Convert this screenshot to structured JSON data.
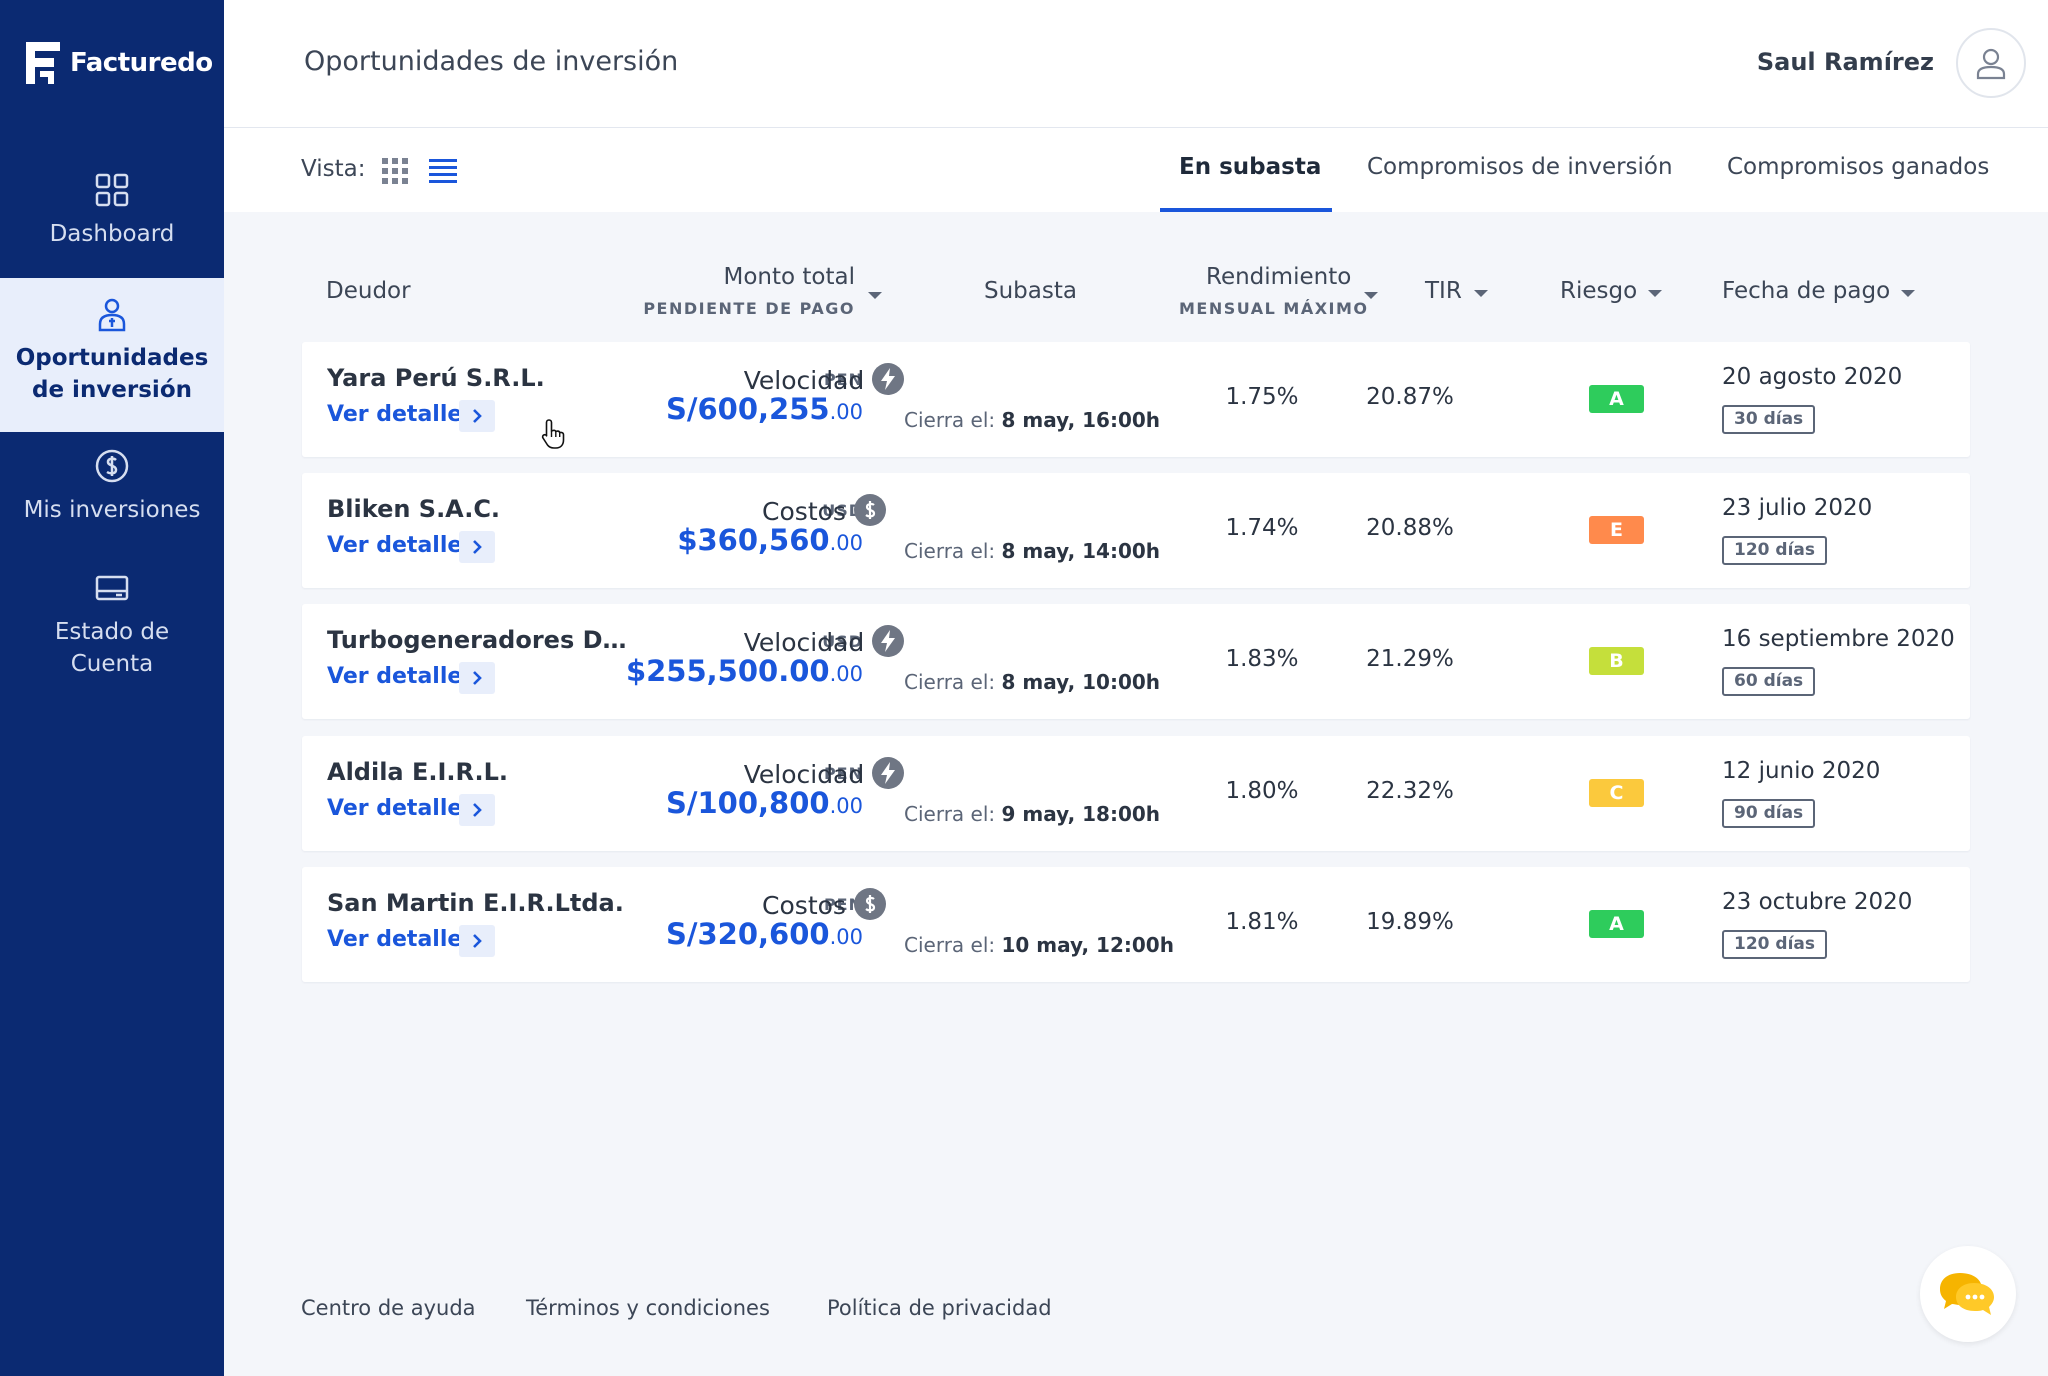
{
  "app": {
    "brand": "Facturedo",
    "brand_color": "#0b2a72",
    "accent": "#1a56db"
  },
  "sidebar": {
    "items": [
      {
        "label": "Dashboard",
        "icon": "grid-icon",
        "active": false
      },
      {
        "label_line1": "Oportunidades",
        "label_line2": "de inversión",
        "icon": "investor-icon",
        "active": true
      },
      {
        "label": "Mis inversiones",
        "icon": "dollar-circle-icon",
        "active": false
      },
      {
        "label_line1": "Estado de",
        "label_line2": "Cuenta",
        "icon": "wallet-icon",
        "active": false
      }
    ]
  },
  "header": {
    "title": "Oportunidades de inversión",
    "user_name": "Saul Ramírez"
  },
  "toolbar": {
    "vista_label": "Vista:",
    "tabs": [
      {
        "label": "En subasta",
        "active": true
      },
      {
        "label": "Compromisos de inversión",
        "active": false
      },
      {
        "label": "Compromisos ganados",
        "active": false
      }
    ]
  },
  "table": {
    "headers": {
      "deudor": "Deudor",
      "monto": "Monto total",
      "monto_sub": "PENDIENTE DE PAGO",
      "subasta": "Subasta",
      "rendimiento": "Rendimiento",
      "rendimiento_sub": "MENSUAL MÁXIMO",
      "tir": "TIR",
      "riesgo": "Riesgo",
      "fecha": "Fecha de pago"
    },
    "ver_detalle": "Ver detalle",
    "cierra_label": "Cierra el:",
    "rows": [
      {
        "deudor": "Yara Perú S.R.L.",
        "currency": "PEN",
        "amount": "S/600,255",
        "cents": ".00",
        "subasta": "Velocidad",
        "subasta_icon": "lightning-icon",
        "cierra": "8 may, 16:00h",
        "rendimiento": "1.75%",
        "tir": "20.87%",
        "riesgo": "A",
        "riesgo_color": "#2ecc5c",
        "fecha": "20 agosto 2020",
        "dias": "30 días"
      },
      {
        "deudor": "Bliken S.A.C.",
        "currency": "USD",
        "amount": "$360,560",
        "cents": ".00",
        "subasta": "Costos",
        "subasta_icon": "dollar-icon",
        "cierra": "8 may, 14:00h",
        "rendimiento": "1.74%",
        "tir": "20.88%",
        "riesgo": "E",
        "riesgo_color": "#ff8a4c",
        "fecha": "23 julio 2020",
        "dias": "120 días"
      },
      {
        "deudor": "Turbogeneradores Del...",
        "currency": "USD",
        "amount": "$255,500.00",
        "cents": ".00",
        "subasta": "Velocidad",
        "subasta_icon": "lightning-icon",
        "cierra": "8 may, 10:00h",
        "rendimiento": "1.83%",
        "tir": "21.29%",
        "riesgo": "B",
        "riesgo_color": "#c5df3b",
        "fecha": "16 septiembre 2020",
        "dias": "60 días"
      },
      {
        "deudor": "Aldila E.I.R.L.",
        "currency": "PEN",
        "amount": "S/100,800",
        "cents": ".00",
        "subasta": "Velocidad",
        "subasta_icon": "lightning-icon",
        "cierra": "9 may, 18:00h",
        "rendimiento": "1.80%",
        "tir": "22.32%",
        "riesgo": "C",
        "riesgo_color": "#fbc93d",
        "fecha": "12 junio 2020",
        "dias": "90 días"
      },
      {
        "deudor": "San Martin E.I.R.Ltda.",
        "currency": "PEN",
        "amount": "S/320,600",
        "cents": ".00",
        "subasta": "Costos",
        "subasta_icon": "dollar-icon",
        "cierra": "10 may, 12:00h",
        "rendimiento": "1.81%",
        "tir": "19.89%",
        "riesgo": "A",
        "riesgo_color": "#2ecc5c",
        "fecha": "23 octubre 2020",
        "dias": "120 días"
      }
    ]
  },
  "footer": {
    "links": [
      "Centro de ayuda",
      "Términos y condiciones",
      "Política de privacidad"
    ]
  }
}
